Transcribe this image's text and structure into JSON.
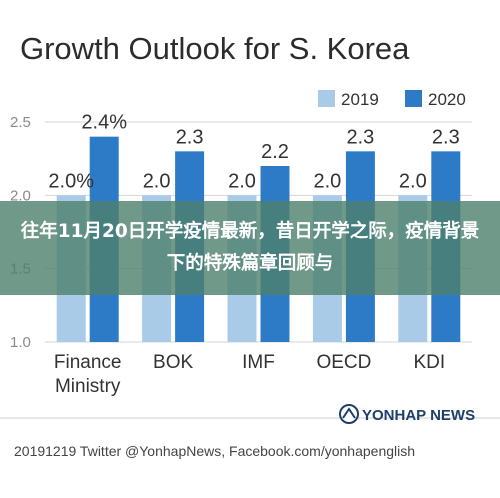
{
  "chart_data": {
    "type": "bar",
    "title": "Growth Outlook for S. Korea",
    "categories_lines": [
      [
        "Finance",
        "Ministry"
      ],
      [
        "BOK"
      ],
      [
        "IMF"
      ],
      [
        "OECD"
      ],
      [
        "KDI"
      ]
    ],
    "series": [
      {
        "name": "2019",
        "values": [
          2.0,
          2.0,
          2.0,
          2.0,
          2.0
        ],
        "labels": [
          "2.0%",
          "2.0",
          "2.0",
          "2.0",
          "2.0"
        ],
        "color": "#a9cbe8"
      },
      {
        "name": "2020",
        "values": [
          2.4,
          2.3,
          2.2,
          2.3,
          2.3
        ],
        "labels": [
          "2.4%",
          "2.3",
          "2.2",
          "2.3",
          "2.3"
        ],
        "color": "#2d7bc6"
      }
    ],
    "y_ticks": [
      "2.5",
      "2.0",
      "1.5",
      "1.0"
    ],
    "y_tick_values": [
      2.5,
      2.0,
      1.5,
      1.0
    ],
    "ylim": [
      1.0,
      2.5
    ],
    "grid": true,
    "legend_position": "top-right"
  },
  "overlay": {
    "text": "往年11月20日开学疫情最新，昔日开学之际，疫情背景下的特殊篇章回顾与"
  },
  "footer": {
    "brand": "YONHAP NEWS",
    "credit": "20191219 Twitter @YonhapNews, Facebook.com/yonhapenglish"
  }
}
